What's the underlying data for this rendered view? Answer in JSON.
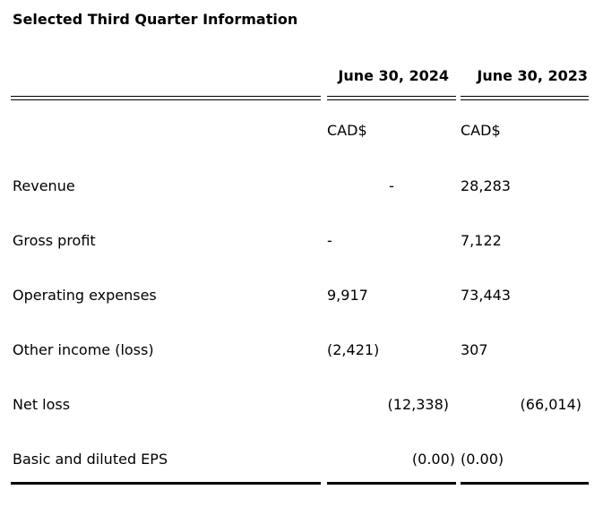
{
  "title": "Selected Third Quarter Information",
  "table": {
    "column_headers": {
      "col_2024": "June 30, 2024",
      "col_2023": "June 30, 2023"
    },
    "currency_row": {
      "col_2024": "CAD$",
      "col_2023": "CAD$"
    },
    "rows": [
      {
        "label": "Revenue",
        "v2024": "-",
        "v2023": "28,283"
      },
      {
        "label": "Gross profit",
        "v2024": "-",
        "v2023": "7,122"
      },
      {
        "label": "Operating expenses",
        "v2024": "9,917",
        "v2023": "73,443"
      },
      {
        "label": "Other income (loss)",
        "v2024": "(2,421)",
        "v2023": "307"
      },
      {
        "label": "Net loss",
        "v2024": "(12,338)",
        "v2023": "(66,014)"
      },
      {
        "label": "Basic and diluted EPS",
        "v2024": "(0.00)",
        "v2023": "(0.00)"
      }
    ]
  },
  "colors": {
    "text": "#000000",
    "background": "#ffffff",
    "rule": "#000000"
  }
}
